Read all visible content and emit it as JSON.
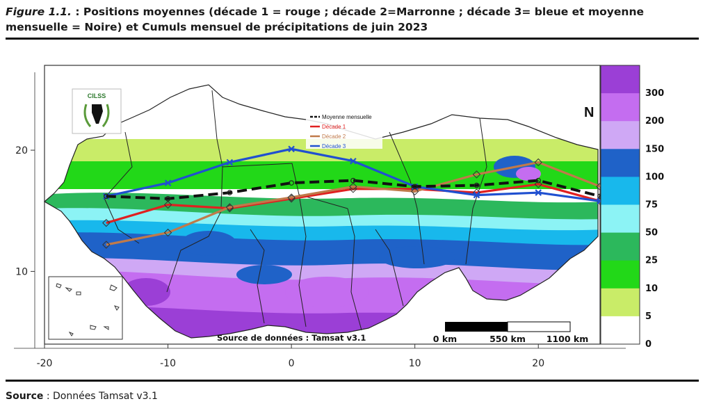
{
  "caption": {
    "figure_label": "Figure 1.1.",
    "text": " : Positions moyennes (décade 1 = rouge ; décade 2=Marronne ; décade 3= bleue et moyenne mensuelle = Noire) et Cumuls mensuel de précipitations de juin 2023"
  },
  "source_line": {
    "label": "Source",
    "text": " : Données Tamsat v3.1"
  },
  "map": {
    "logo_text": "CILSS",
    "north_symbol": "N",
    "data_source_note": "Source de données : Tamsat v3.1",
    "scale_bar": {
      "labels": [
        "0 km",
        "550 km",
        "1100 km"
      ]
    },
    "legend": [
      {
        "label": "Moyenne mensuelle",
        "color": "#111111"
      },
      {
        "label": "Décade 1",
        "color": "#e02020"
      },
      {
        "label": "Décade 2",
        "color": "#c07a4a"
      },
      {
        "label": "Décade 3",
        "color": "#2050d0"
      }
    ],
    "x_axis": {
      "ticks": [
        -20,
        -10,
        0,
        10,
        20
      ],
      "range": [
        -20,
        25
      ]
    },
    "y_axis": {
      "ticks": [
        20,
        10
      ],
      "range": [
        4,
        27
      ]
    },
    "colorbar": {
      "labels": [
        "300",
        "200",
        "150",
        "100",
        "75",
        "50",
        "25",
        "10",
        "5",
        "0"
      ],
      "bands": [
        "#9b3fd6",
        "#c46df0",
        "#cfa8f5",
        "#1f62c8",
        "#18b8ec",
        "#8cf3f5",
        "#2cb85c",
        "#22d818",
        "#c9ec68",
        "#ffffff"
      ]
    },
    "lines": [
      {
        "name": "decade-1",
        "color": "#e02020",
        "points": [
          [
            -15,
            14
          ],
          [
            -10,
            15.5
          ],
          [
            -5,
            15.2
          ],
          [
            0,
            16
          ],
          [
            5,
            16.8
          ],
          [
            10,
            16.8
          ],
          [
            15,
            16.5
          ],
          [
            20,
            17.2
          ],
          [
            25,
            15.8
          ]
        ]
      },
      {
        "name": "decade-2",
        "color": "#c07a4a",
        "points": [
          [
            -15,
            12.2
          ],
          [
            -10,
            13.2
          ],
          [
            -5,
            15.3
          ],
          [
            0,
            16.1
          ],
          [
            5,
            17
          ],
          [
            10,
            16.6
          ],
          [
            15,
            18
          ],
          [
            20,
            19
          ],
          [
            25,
            17
          ]
        ]
      },
      {
        "name": "decade-3",
        "color": "#2050d0",
        "points": [
          [
            -15,
            16.2
          ],
          [
            -10,
            17.3
          ],
          [
            -5,
            19
          ],
          [
            0,
            20.1
          ],
          [
            5,
            19.1
          ],
          [
            10,
            17
          ],
          [
            15,
            16.3
          ],
          [
            20,
            16.5
          ],
          [
            25,
            15.8
          ]
        ]
      },
      {
        "name": "monthly-mean",
        "color": "#111111",
        "points": [
          [
            -15,
            16.2
          ],
          [
            -10,
            16
          ],
          [
            -5,
            16.5
          ],
          [
            0,
            17.3
          ],
          [
            5,
            17.5
          ],
          [
            10,
            17
          ],
          [
            15,
            17.1
          ],
          [
            20,
            17.5
          ],
          [
            25,
            16.2
          ]
        ]
      }
    ]
  }
}
